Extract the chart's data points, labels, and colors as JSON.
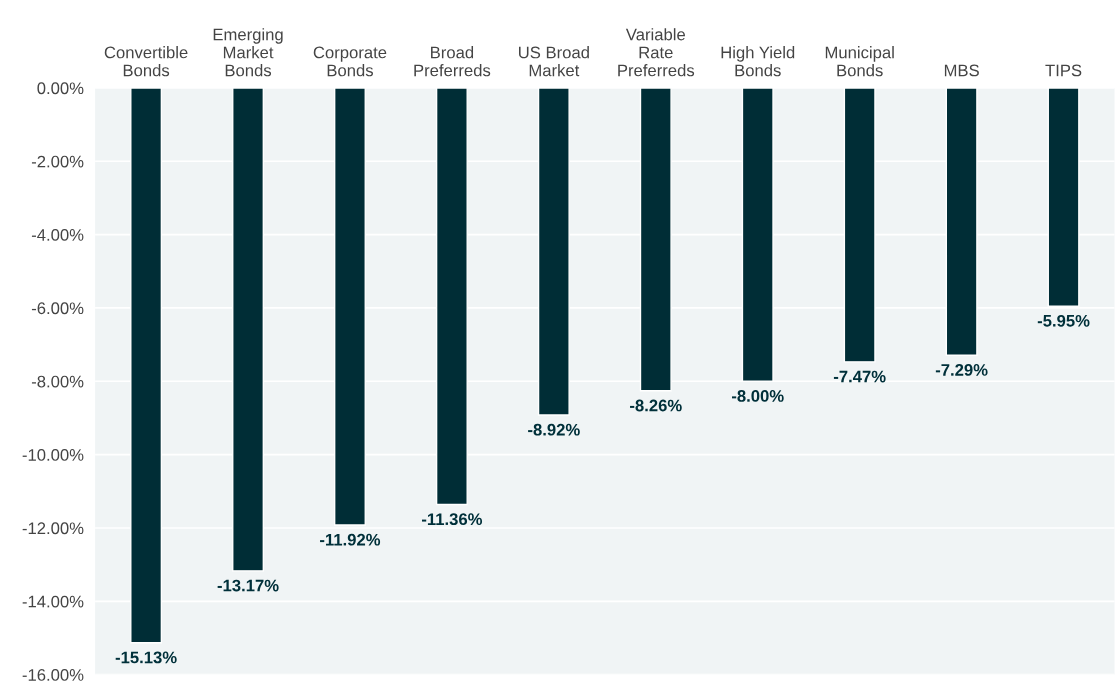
{
  "chart_data": {
    "type": "bar",
    "categories": [
      "Convertible\nBonds",
      "Emerging\nMarket\nBonds",
      "Corporate\nBonds",
      "Broad\nPreferreds",
      "US Broad\nMarket",
      "Variable\nRate\nPreferreds",
      "High Yield\nBonds",
      "Municipal\nBonds",
      "MBS",
      "TIPS"
    ],
    "values": [
      -15.13,
      -13.17,
      -11.92,
      -11.36,
      -8.92,
      -8.26,
      -8.0,
      -7.47,
      -7.29,
      -5.95
    ],
    "value_labels": [
      "-15.13%",
      "-13.17%",
      "-11.92%",
      "-11.36%",
      "-8.92%",
      "-8.26%",
      "-8.00%",
      "-7.47%",
      "-7.29%",
      "-5.95%"
    ],
    "color": "#002d36",
    "ylim": [
      -16,
      0
    ],
    "yticks": [
      {
        "value": 0,
        "label": "0.00%"
      },
      {
        "value": -2,
        "label": "-2.00%"
      },
      {
        "value": -4,
        "label": "-4.00%"
      },
      {
        "value": -6,
        "label": "-6.00%"
      },
      {
        "value": -8,
        "label": "-8.00%"
      },
      {
        "value": -10,
        "label": "-10.00%"
      },
      {
        "value": -12,
        "label": "-12.00%"
      },
      {
        "value": -14,
        "label": "-14.00%"
      },
      {
        "value": -16,
        "label": "-16.00%"
      }
    ],
    "grid": "y"
  }
}
